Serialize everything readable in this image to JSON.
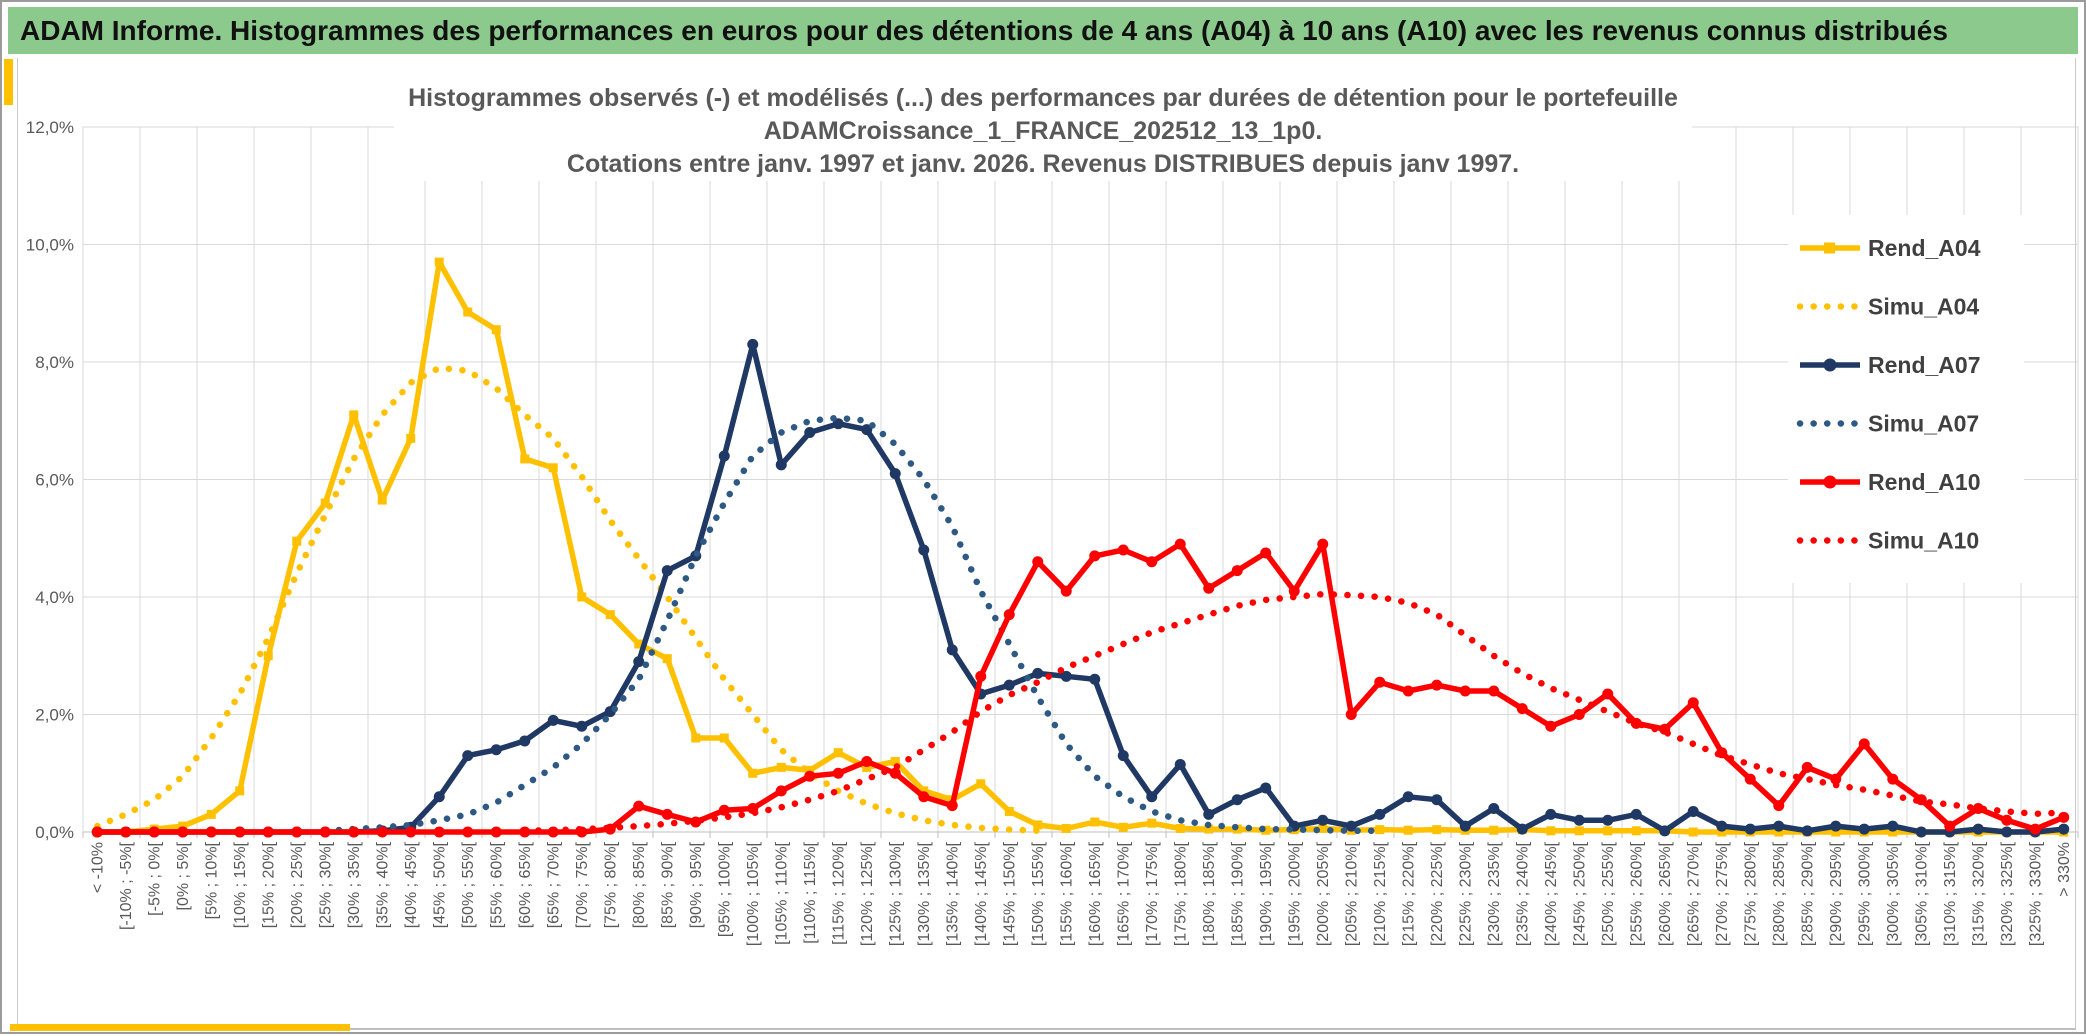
{
  "banner": {
    "title": "ADAM Informe. Histogrammes des performances en euros pour des détentions de 4 ans (A04) à 10 ans (A10) avec les revenus connus distribués"
  },
  "accent_colors": {
    "banner_green": "#8CC98C",
    "gold": "#FFC000",
    "title_gray": "#595959",
    "legend_text": "#404040",
    "gridline": "#D9D9D9"
  },
  "chart_data": {
    "type": "line",
    "title_lines": [
      "Histogrammes observés (-) et modélisés (...) des performances par durées de détention pour le portefeuille",
      "ADAMCroissance_1_FRANCE_202512_13_1p0.",
      "Cotations entre janv. 1997 et janv. 2026. Revenus DISTRIBUES depuis janv 1997."
    ],
    "ylabel": "",
    "xlabel": "",
    "ylim": [
      0,
      12.1
    ],
    "y_ticks": [
      "0,0%",
      "2,0%",
      "4,0%",
      "6,0%",
      "8,0%",
      "10,0%",
      "12,0%"
    ],
    "grid": "both",
    "legend_position": "right-inside",
    "categories": [
      "< -10%",
      "[-10% ; -5%[",
      "[-5% ; 0%[",
      "[0% ; 5%[",
      "[5% ; 10%[",
      "[10% ; 15%[",
      "[15% ; 20%[",
      "[20% ; 25%[",
      "[25% ; 30%[",
      "[30% ; 35%[",
      "[35% ; 40%[",
      "[40% ; 45%[",
      "[45% ; 50%[",
      "[50% ; 55%[",
      "[55% ; 60%[",
      "[60% ; 65%[",
      "[65% ; 70%[",
      "[70% ; 75%[",
      "[75% ; 80%[",
      "[80% ; 85%[",
      "[85% ; 90%[",
      "[90% ; 95%[",
      "[95% ; 100%[",
      "[100% ; 105%[",
      "[105% ; 110%[",
      "[110% ; 115%[",
      "[115% ; 120%[",
      "[120% ; 125%[",
      "[125% ; 130%[",
      "[130% ; 135%[",
      "[135% ; 140%[",
      "[140% ; 145%[",
      "[145% ; 150%[",
      "[150% ; 155%[",
      "[155% ; 160%[",
      "[160% ; 165%[",
      "[165% ; 170%[",
      "[170% ; 175%[",
      "[175% ; 180%[",
      "[180% ; 185%[",
      "[185% ; 190%[",
      "[190% ; 195%[",
      "[195% ; 200%[",
      "[200% ; 205%[",
      "[205% ; 210%[",
      "[210% ; 215%[",
      "[215% ; 220%[",
      "[220% ; 225%[",
      "[225% ; 230%[",
      "[230% ; 235%[",
      "[235% ; 240%[",
      "[240% ; 245%[",
      "[245% ; 250%[",
      "[250% ; 255%[",
      "[255% ; 260%[",
      "[260% ; 265%[",
      "[265% ; 270%[",
      "[270% ; 275%[",
      "[275% ; 280%[",
      "[280% ; 285%[",
      "[285% ; 290%[",
      "[290% ; 295%[",
      "[295% ; 300%[",
      "[300% ; 305%[",
      "[305% ; 310%[",
      "[310% ; 315%[",
      "[315% ; 320%[",
      "[320% ; 325%[",
      "[325% ; 330%[",
      "> 330%"
    ],
    "series": [
      {
        "name": "Rend_A04",
        "color": "#FFC000",
        "style": "solid",
        "marker": "square",
        "values": [
          0,
          0,
          0.05,
          0.1,
          0.3,
          0.7,
          3.0,
          4.95,
          5.6,
          7.1,
          5.65,
          6.7,
          9.7,
          8.85,
          8.55,
          6.35,
          6.2,
          4.0,
          3.7,
          3.2,
          2.95,
          1.6,
          1.6,
          1.0,
          1.1,
          1.05,
          1.35,
          1.1,
          1.2,
          0.7,
          0.55,
          0.82,
          0.35,
          0.12,
          0.06,
          0.17,
          0.08,
          0.15,
          0.06,
          0.05,
          0.05,
          0.03,
          0.04,
          0.06,
          0.03,
          0.04,
          0.03,
          0.04,
          0.03,
          0.03,
          0.04,
          0.02,
          0.02,
          0.02,
          0.02,
          0.02,
          0,
          0,
          0,
          0,
          0,
          0,
          0,
          0,
          0,
          0,
          0,
          0,
          0,
          0
        ]
      },
      {
        "name": "Simu_A04",
        "color": "#FFC000",
        "style": "dotted",
        "marker": "none",
        "values": [
          0.1,
          0.3,
          0.55,
          0.95,
          1.6,
          2.35,
          3.3,
          4.4,
          5.4,
          6.35,
          7.1,
          7.65,
          7.9,
          7.85,
          7.55,
          7.1,
          6.7,
          6.05,
          5.3,
          4.65,
          4.0,
          3.3,
          2.6,
          2.0,
          1.4,
          1.0,
          0.7,
          0.48,
          0.32,
          0.2,
          0.12,
          0.07,
          0.04,
          0.02,
          0,
          0,
          0,
          0,
          0,
          0,
          0,
          0,
          0,
          0,
          0,
          0,
          0,
          0,
          0,
          0,
          0,
          0,
          0,
          0,
          0,
          0,
          0,
          0,
          0,
          0,
          0,
          0,
          0,
          0,
          0,
          0,
          0,
          0,
          0,
          0
        ]
      },
      {
        "name": "Rend_A07",
        "color": "#1F3864",
        "style": "solid",
        "marker": "circle",
        "values": [
          0,
          0,
          0,
          0,
          0,
          0,
          0,
          0,
          0,
          0,
          0.02,
          0.08,
          0.6,
          1.3,
          1.4,
          1.55,
          1.9,
          1.8,
          2.05,
          2.9,
          4.45,
          4.7,
          6.4,
          8.3,
          6.25,
          6.8,
          6.95,
          6.85,
          6.1,
          4.8,
          3.1,
          2.35,
          2.5,
          2.7,
          2.65,
          2.6,
          1.3,
          0.6,
          1.15,
          0.3,
          0.55,
          0.75,
          0.1,
          0.2,
          0.1,
          0.3,
          0.6,
          0.55,
          0.1,
          0.4,
          0.05,
          0.3,
          0.2,
          0.2,
          0.3,
          0.02,
          0.35,
          0.1,
          0.05,
          0.1,
          0.02,
          0.1,
          0.05,
          0.1,
          0,
          0,
          0.05,
          0,
          0,
          0.05
        ]
      },
      {
        "name": "Simu_A07",
        "color": "#2E5984",
        "style": "dotted",
        "marker": "none",
        "values": [
          0,
          0,
          0,
          0,
          0,
          0,
          0,
          0,
          0.02,
          0.05,
          0.08,
          0.12,
          0.2,
          0.3,
          0.5,
          0.8,
          1.1,
          1.5,
          2.0,
          2.6,
          3.6,
          4.7,
          5.6,
          6.4,
          6.8,
          7.0,
          7.05,
          7.0,
          6.6,
          6.0,
          5.2,
          4.1,
          3.2,
          2.3,
          1.5,
          0.95,
          0.6,
          0.35,
          0.2,
          0.12,
          0.08,
          0.05,
          0.04,
          0.03,
          0.02,
          0.02,
          0,
          0,
          0,
          0,
          0,
          0,
          0,
          0,
          0,
          0,
          0,
          0,
          0,
          0,
          0,
          0,
          0,
          0,
          0,
          0,
          0,
          0,
          0,
          0
        ]
      },
      {
        "name": "Rend_A10",
        "color": "#FF0000",
        "style": "solid",
        "marker": "circle",
        "values": [
          0,
          0,
          0,
          0,
          0,
          0,
          0,
          0,
          0,
          0,
          0,
          0,
          0,
          0,
          0,
          0,
          0,
          0,
          0.05,
          0.44,
          0.3,
          0.17,
          0.37,
          0.4,
          0.7,
          0.95,
          1.0,
          1.2,
          1.0,
          0.6,
          0.45,
          2.65,
          3.7,
          4.6,
          4.1,
          4.7,
          4.8,
          4.6,
          4.9,
          4.15,
          4.45,
          4.75,
          4.1,
          4.9,
          2.0,
          2.55,
          2.4,
          2.5,
          2.4,
          2.4,
          2.1,
          1.8,
          2.0,
          2.35,
          1.85,
          1.75,
          2.2,
          1.35,
          0.9,
          0.45,
          1.1,
          0.9,
          1.5,
          0.9,
          0.55,
          0.1,
          0.4,
          0.2,
          0.05,
          0.25
        ]
      },
      {
        "name": "Simu_A10",
        "color": "#FF0000",
        "style": "dotted",
        "marker": "none",
        "values": [
          0,
          0,
          0,
          0,
          0,
          0,
          0,
          0,
          0,
          0,
          0,
          0,
          0,
          0,
          0,
          0.02,
          0.03,
          0.05,
          0.07,
          0.1,
          0.14,
          0.19,
          0.25,
          0.32,
          0.42,
          0.55,
          0.7,
          0.9,
          1.1,
          1.4,
          1.7,
          2.05,
          2.33,
          2.55,
          2.8,
          3.0,
          3.2,
          3.4,
          3.55,
          3.7,
          3.85,
          3.95,
          4.0,
          4.05,
          4.03,
          4.0,
          3.9,
          3.7,
          3.35,
          3.0,
          2.7,
          2.45,
          2.25,
          2.05,
          1.85,
          1.7,
          1.5,
          1.3,
          1.15,
          1.0,
          0.9,
          0.8,
          0.72,
          0.62,
          0.52,
          0.47,
          0.4,
          0.35,
          0.31,
          0.33
        ]
      }
    ]
  }
}
